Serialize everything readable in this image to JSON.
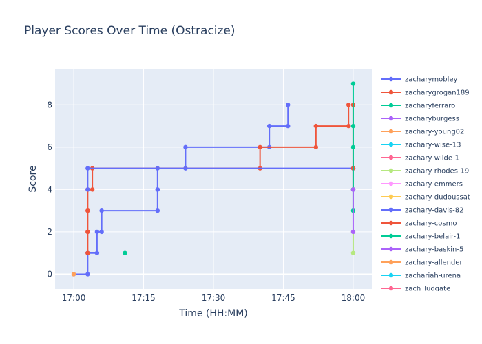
{
  "chart_data": {
    "type": "line",
    "title": "Player Scores Over Time (Ostracize)",
    "xlabel": "Time (HH:MM)",
    "ylabel": "Score",
    "x_ticks": [
      "17:00",
      "17:15",
      "17:30",
      "17:45",
      "18:00"
    ],
    "y_ticks": [
      0,
      2,
      4,
      6,
      8
    ],
    "xlim": [
      "16:56",
      "18:04"
    ],
    "ylim": [
      -0.7,
      9.7
    ],
    "line_shape": "step",
    "grid": true,
    "legend": "right",
    "series": [
      {
        "name": "zacharymobley",
        "color": "#636efa",
        "points": [
          [
            "17:00",
            0
          ],
          [
            "17:03",
            0
          ],
          [
            "17:03",
            1
          ],
          [
            "17:05",
            1
          ],
          [
            "17:05",
            2
          ],
          [
            "17:06",
            2
          ],
          [
            "17:06",
            3
          ],
          [
            "17:18",
            3
          ],
          [
            "17:18",
            4
          ],
          [
            "17:18",
            4
          ],
          [
            "17:18",
            5
          ],
          [
            "17:24",
            5
          ],
          [
            "17:24",
            6
          ],
          [
            "17:42",
            6
          ],
          [
            "17:42",
            7
          ],
          [
            "17:46",
            7
          ],
          [
            "17:46",
            8
          ]
        ]
      },
      {
        "name": "zacharygrogan189",
        "color": "#EF553B",
        "points": [
          [
            "17:03",
            1
          ],
          [
            "17:03",
            2
          ],
          [
            "17:03",
            2
          ],
          [
            "17:03",
            3
          ],
          [
            "17:03",
            3
          ],
          [
            "17:03",
            4
          ],
          [
            "17:04",
            4
          ],
          [
            "17:04",
            5
          ],
          [
            "17:40",
            5
          ],
          [
            "17:40",
            6
          ],
          [
            "17:52",
            6
          ],
          [
            "17:52",
            7
          ],
          [
            "17:59",
            7
          ],
          [
            "17:59",
            8
          ]
        ]
      },
      {
        "name": "zacharyferraro",
        "color": "#00cc96",
        "points": [
          [
            "17:11",
            1
          ]
        ]
      },
      {
        "name": "zacharyburgess",
        "color": "#ab63fa",
        "points": []
      },
      {
        "name": "zachary-young02",
        "color": "#FFA15A",
        "points": [
          [
            "17:00",
            0
          ]
        ]
      },
      {
        "name": "zachary-wise-13",
        "color": "#19d3f3",
        "points": []
      },
      {
        "name": "zachary-wilde-1",
        "color": "#FF6692",
        "points": []
      },
      {
        "name": "zachary-rhodes-19",
        "color": "#B6E880",
        "points": [
          [
            "18:00",
            1
          ],
          [
            "18:00",
            2
          ]
        ]
      },
      {
        "name": "zachary-emmers",
        "color": "#FF97FF",
        "points": []
      },
      {
        "name": "zachary-dudoussat",
        "color": "#FECB52",
        "points": []
      },
      {
        "name": "zachary-davis-82",
        "color": "#636efa",
        "points": [
          [
            "17:03",
            4
          ],
          [
            "17:03",
            5
          ],
          [
            "18:00",
            5
          ],
          [
            "18:00",
            5
          ],
          [
            "18:00",
            4
          ]
        ]
      },
      {
        "name": "zachary-cosmo",
        "color": "#EF553B",
        "points": [
          [
            "18:00",
            4
          ],
          [
            "18:00",
            5
          ],
          [
            "18:00",
            8
          ]
        ]
      },
      {
        "name": "zachary-belair-1",
        "color": "#00cc96",
        "points": [
          [
            "18:00",
            3
          ],
          [
            "18:00",
            4
          ],
          [
            "18:00",
            6
          ],
          [
            "18:00",
            7
          ],
          [
            "18:00",
            9
          ]
        ]
      },
      {
        "name": "zachary-baskin-5",
        "color": "#ab63fa",
        "points": [
          [
            "18:00",
            2
          ],
          [
            "18:00",
            4
          ]
        ]
      },
      {
        "name": "zachary-allender",
        "color": "#FFA15A",
        "points": []
      },
      {
        "name": "zachariah-urena",
        "color": "#19d3f3",
        "points": []
      },
      {
        "name": "zach_ludgate",
        "color": "#FF6692",
        "points": []
      }
    ]
  }
}
